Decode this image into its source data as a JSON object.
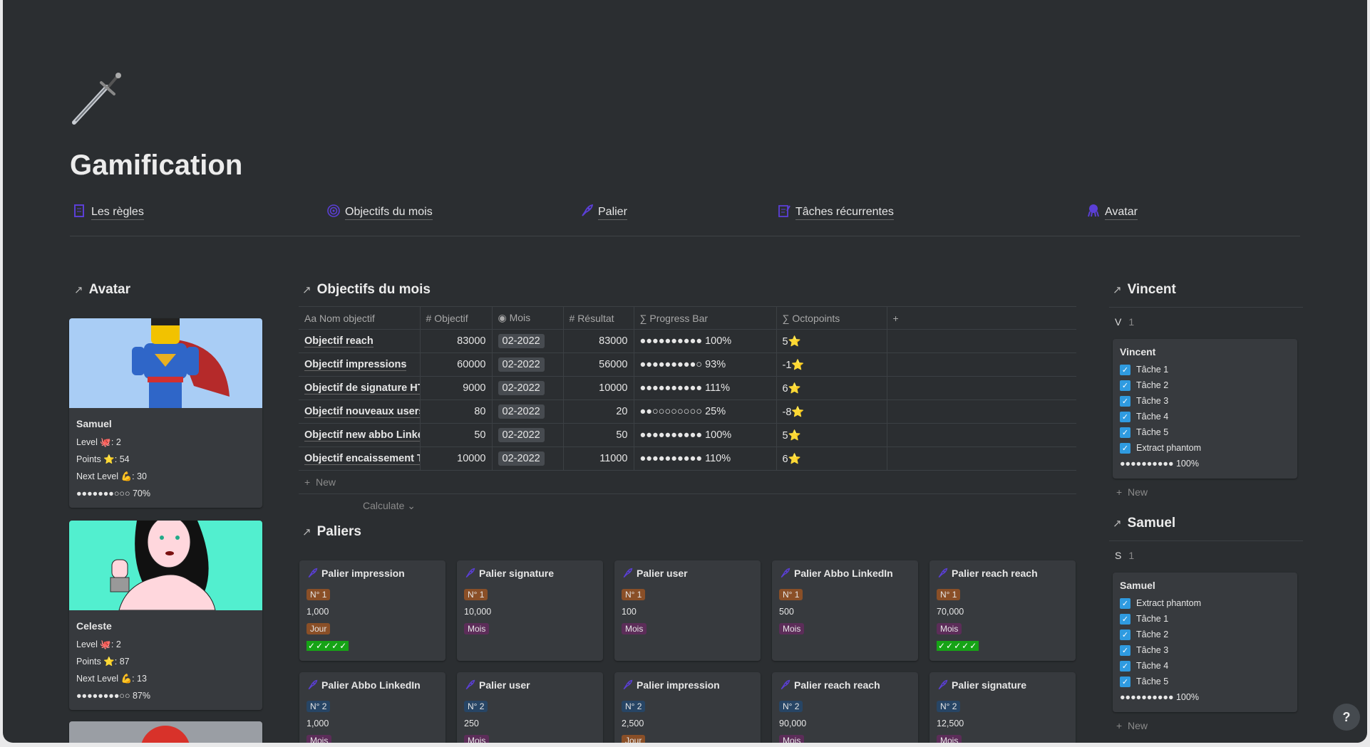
{
  "page": {
    "title": "Gamification",
    "icon": "dagger-icon"
  },
  "nav": [
    {
      "label": "Les règles",
      "icon": "rules-doc-icon"
    },
    {
      "label": "Objectifs du mois",
      "icon": "target-icon"
    },
    {
      "label": "Palier",
      "icon": "rocket-icon"
    },
    {
      "label": "Tâches récurrentes",
      "icon": "checklist-icon"
    },
    {
      "label": "Avatar",
      "icon": "octopus-icon"
    }
  ],
  "avatar": {
    "heading": "Avatar",
    "cards": [
      {
        "name": "Samuel",
        "level": "Level 🐙: 2",
        "points": "Points ⭐: 54",
        "next": "Next Level 💪: 30",
        "progress": "●●●●●●●○○○ 70%",
        "progress_value": 70
      },
      {
        "name": "Celeste",
        "level": "Level 🐙: 2",
        "points": "Points ⭐: 87",
        "next": "Next Level 💪: 13",
        "progress": "●●●●●●●●○○ 87%",
        "progress_value": 87
      }
    ]
  },
  "objectifs": {
    "heading": "Objectifs du mois",
    "columns": [
      {
        "icon": "Aa",
        "label": "Nom objectif"
      },
      {
        "icon": "#",
        "label": "Objectif"
      },
      {
        "icon": "◉",
        "label": "Mois"
      },
      {
        "icon": "#",
        "label": "Résultat"
      },
      {
        "icon": "∑",
        "label": "Progress Bar"
      },
      {
        "icon": "∑",
        "label": "Octopoints"
      }
    ],
    "add_column": "+",
    "rows": [
      {
        "name": "Objectif reach",
        "objectif": "83000",
        "mois": "02-2022",
        "resultat": "83000",
        "progress": "●●●●●●●●●● 100%",
        "octo": "5⭐"
      },
      {
        "name": "Objectif impressions",
        "objectif": "60000",
        "mois": "02-2022",
        "resultat": "56000",
        "progress": "●●●●●●●●●○ 93%",
        "octo": "-1⭐"
      },
      {
        "name": "Objectif de signature HT",
        "objectif": "9000",
        "mois": "02-2022",
        "resultat": "10000",
        "progress": "●●●●●●●●●● 111%",
        "octo": "6⭐"
      },
      {
        "name": "Objectif nouveaux users",
        "objectif": "80",
        "mois": "02-2022",
        "resultat": "20",
        "progress": "●●○○○○○○○○ 25%",
        "octo": "-8⭐"
      },
      {
        "name": "Objectif new abbo LinkedIn",
        "objectif": "50",
        "mois": "02-2022",
        "resultat": "50",
        "progress": "●●●●●●●●●● 100%",
        "octo": "5⭐"
      },
      {
        "name": "Objectif encaissement TTC",
        "objectif": "10000",
        "mois": "02-2022",
        "resultat": "11000",
        "progress": "●●●●●●●●●● 110%",
        "octo": "6⭐"
      }
    ],
    "new_label": "New",
    "calculate_label": "Calculate ⌄"
  },
  "paliers": {
    "heading": "Paliers",
    "cards": [
      {
        "title": "Palier impression",
        "num": "N° 1",
        "value": "1,000",
        "period": "Jour",
        "checks": "✓✓✓✓✓"
      },
      {
        "title": "Palier signature",
        "num": "N° 1",
        "value": "10,000",
        "period": "Mois"
      },
      {
        "title": "Palier user",
        "num": "N° 1",
        "value": "100",
        "period": "Mois"
      },
      {
        "title": "Palier Abbo LinkedIn",
        "num": "N° 1",
        "value": "500",
        "period": "Mois"
      },
      {
        "title": "Palier reach reach",
        "num": "N° 1",
        "value": "70,000",
        "period": "Mois",
        "checks": "✓✓✓✓✓"
      },
      {
        "title": "Palier Abbo LinkedIn",
        "num": "N° 2",
        "value": "1,000",
        "period": "Mois"
      },
      {
        "title": "Palier user",
        "num": "N° 2",
        "value": "250",
        "period": "Mois"
      },
      {
        "title": "Palier impression",
        "num": "N° 2",
        "value": "2,500",
        "period": "Jour"
      },
      {
        "title": "Palier reach reach",
        "num": "N° 2",
        "value": "90,000",
        "period": "Mois"
      },
      {
        "title": "Palier signature",
        "num": "N° 2",
        "value": "12,500",
        "period": "Mois"
      }
    ]
  },
  "people": [
    {
      "heading": "Vincent",
      "group": "V",
      "count": "1",
      "card": "Vincent",
      "tasks": [
        "Tâche 1",
        "Tâche 2",
        "Tâche 3",
        "Tâche 4",
        "Tâche 5",
        "Extract phantom"
      ],
      "progress": "●●●●●●●●●● 100%",
      "new_label": "New"
    },
    {
      "heading": "Samuel",
      "group": "S",
      "count": "1",
      "card": "Samuel",
      "tasks": [
        "Extract phantom",
        "Tâche 1",
        "Tâche 2",
        "Tâche 3",
        "Tâche 4",
        "Tâche 5"
      ],
      "progress": "●●●●●●●●●● 100%",
      "new_label": "New"
    }
  ],
  "help": "?",
  "colors": {
    "background": "#2b2e31",
    "card": "#373a3e",
    "accent": "#5b3fd6",
    "checkbox": "#2f9be0",
    "badge_n1": "#8a4f27",
    "badge_n2": "#274565",
    "badge_mois": "#5c2d59",
    "checks_green": "#16a316"
  }
}
